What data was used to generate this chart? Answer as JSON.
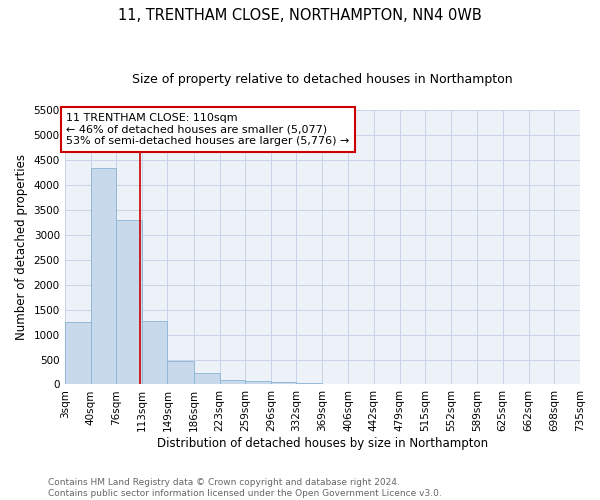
{
  "title1": "11, TRENTHAM CLOSE, NORTHAMPTON, NN4 0WB",
  "title2": "Size of property relative to detached houses in Northampton",
  "xlabel": "Distribution of detached houses by size in Northampton",
  "ylabel": "Number of detached properties",
  "bar_color": "#c9d9ec",
  "bar_edge_color": "#8ab4d4",
  "vline_x": 110,
  "vline_color": "#cc0000",
  "annotation_text": "11 TRENTHAM CLOSE: 110sqm\n← 46% of detached houses are smaller (5,077)\n53% of semi-detached houses are larger (5,776) →",
  "annotation_box_color": "#ffffff",
  "annotation_box_edge": "#cc0000",
  "bin_edges": [
    3,
    40,
    76,
    113,
    149,
    186,
    223,
    259,
    296,
    332,
    369,
    406,
    442,
    479,
    515,
    552,
    589,
    625,
    662,
    698,
    735
  ],
  "bar_heights": [
    1250,
    4350,
    3300,
    1280,
    480,
    230,
    95,
    75,
    50,
    30,
    0,
    0,
    0,
    0,
    0,
    0,
    0,
    0,
    0,
    0
  ],
  "ylim": [
    0,
    5500
  ],
  "yticks": [
    0,
    500,
    1000,
    1500,
    2000,
    2500,
    3000,
    3500,
    4000,
    4500,
    5000,
    5500
  ],
  "grid_color": "#c8d4e8",
  "bg_color": "#edf1f8",
  "footer_text": "Contains HM Land Registry data © Crown copyright and database right 2024.\nContains public sector information licensed under the Open Government Licence v3.0.",
  "title1_fontsize": 10.5,
  "title2_fontsize": 9,
  "axis_label_fontsize": 8.5,
  "tick_fontsize": 7.5,
  "footer_fontsize": 6.5
}
